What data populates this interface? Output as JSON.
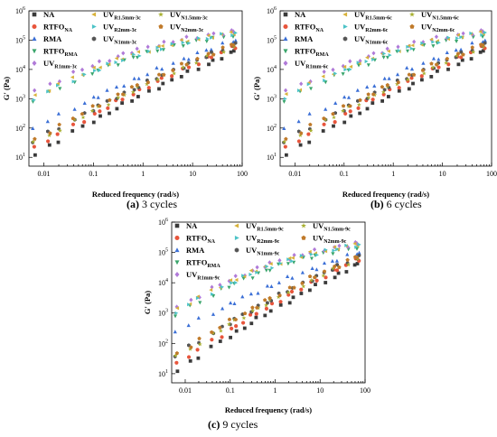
{
  "chart_data": [
    {
      "type": "scatter",
      "caption_label": "(a)",
      "caption_text": "3 cycles",
      "xlabel": "Reduced frequency (rad/s)",
      "ylabel": "G' (Pa)",
      "xscale": "log",
      "yscale": "log",
      "xlim": [
        0.005,
        100
      ],
      "ylim": [
        5,
        1000000
      ],
      "xticks": [
        "0.01",
        "0.1",
        "1",
        "10",
        "100"
      ],
      "yticks": [
        "10^1",
        "10^2",
        "10^3",
        "10^4",
        "10^5",
        "10^6"
      ],
      "grid": false,
      "legend": "top-left, 3 columns",
      "series": [
        {
          "name": "NA",
          "marker": "square",
          "color": "#3a3a3a",
          "y_at_0.006": 12,
          "y_at_70": 40000
        },
        {
          "name": "RTFO_NA",
          "marker": "circle",
          "color": "#e8553c",
          "y_at_0.006": 20,
          "y_at_70": 60000
        },
        {
          "name": "RMA",
          "marker": "triangle-up",
          "color": "#3b6fd6",
          "y_at_0.006": 100,
          "y_at_70": 100000
        },
        {
          "name": "RTFO_RMA",
          "marker": "triangle-down",
          "color": "#3aa56b",
          "y_at_0.006": 900,
          "y_at_70": 150000
        },
        {
          "name": "UV_R1mm-3c",
          "marker": "diamond",
          "color": "#b07ad8",
          "y_at_0.006": 1800,
          "y_at_70": 200000
        },
        {
          "name": "UV_R1.5mm-3c",
          "marker": "triangle-left",
          "color": "#d8b23a",
          "y_at_0.006": 1200,
          "y_at_70": 180000
        },
        {
          "name": "UV_R2mm-3c",
          "marker": "triangle-right",
          "color": "#4cc3c7",
          "y_at_0.006": 1000,
          "y_at_70": 170000
        },
        {
          "name": "UV_N1mm-3c",
          "marker": "hexagon",
          "color": "#555555",
          "y_at_0.006": 35,
          "y_at_70": 70000
        },
        {
          "name": "UV_N1.5mm-3c",
          "marker": "star",
          "color": "#a8b030",
          "y_at_0.006": 30,
          "y_at_70": 65000
        },
        {
          "name": "UV_N2mm-3c",
          "marker": "pentagon",
          "color": "#c07a2a",
          "y_at_0.006": 40,
          "y_at_70": 75000
        }
      ]
    },
    {
      "type": "scatter",
      "caption_label": "(b)",
      "caption_text": "6 cycles",
      "xlabel": "Reduced frequency (rad/s)",
      "ylabel": "G' (Pa)",
      "xscale": "log",
      "yscale": "log",
      "xlim": [
        0.005,
        100
      ],
      "ylim": [
        5,
        1000000
      ],
      "xticks": [
        "0.01",
        "0.1",
        "1",
        "10",
        "100"
      ],
      "yticks": [
        "10^1",
        "10^2",
        "10^3",
        "10^4",
        "10^5",
        "10^6"
      ],
      "grid": false,
      "legend": "top-left, 3 columns",
      "series": [
        {
          "name": "NA",
          "marker": "square",
          "color": "#3a3a3a",
          "y_at_0.006": 12,
          "y_at_70": 40000
        },
        {
          "name": "RTFO_NA",
          "marker": "circle",
          "color": "#e8553c",
          "y_at_0.006": 20,
          "y_at_70": 60000
        },
        {
          "name": "RMA",
          "marker": "triangle-up",
          "color": "#3b6fd6",
          "y_at_0.006": 100,
          "y_at_70": 100000
        },
        {
          "name": "RTFO_RMA",
          "marker": "triangle-down",
          "color": "#3aa56b",
          "y_at_0.006": 900,
          "y_at_70": 150000
        },
        {
          "name": "UV_R1mm-6c",
          "marker": "diamond",
          "color": "#b07ad8",
          "y_at_0.006": 1800,
          "y_at_70": 200000
        },
        {
          "name": "UV_R1.5mm-6c",
          "marker": "triangle-left",
          "color": "#d8b23a",
          "y_at_0.006": 1300,
          "y_at_70": 185000
        },
        {
          "name": "UV_R2mm-6c",
          "marker": "triangle-right",
          "color": "#4cc3c7",
          "y_at_0.006": 1100,
          "y_at_70": 175000
        },
        {
          "name": "UV_N1mm-6c",
          "marker": "hexagon",
          "color": "#555555",
          "y_at_0.006": 35,
          "y_at_70": 70000
        },
        {
          "name": "UV_N1.5mm-6c",
          "marker": "star",
          "color": "#a8b030",
          "y_at_0.006": 30,
          "y_at_70": 65000
        },
        {
          "name": "UV_N2mm-6c",
          "marker": "pentagon",
          "color": "#c07a2a",
          "y_at_0.006": 40,
          "y_at_70": 75000
        }
      ]
    },
    {
      "type": "scatter",
      "caption_label": "(c)",
      "caption_text": "9 cycles",
      "xlabel": "Reduced frequency (rad/s)",
      "ylabel": "G' (Pa)",
      "xscale": "log",
      "yscale": "log",
      "xlim": [
        0.005,
        100
      ],
      "ylim": [
        5,
        1000000
      ],
      "xticks": [
        "0.01",
        "0.1",
        "1",
        "10",
        "100"
      ],
      "yticks": [
        "10^1",
        "10^2",
        "10^3",
        "10^4",
        "10^5",
        "10^6"
      ],
      "grid": false,
      "legend": "top-left, 3 columns",
      "series": [
        {
          "name": "NA",
          "marker": "square",
          "color": "#3a3a3a",
          "y_at_0.006": 12,
          "y_at_70": 40000
        },
        {
          "name": "RTFO_NA",
          "marker": "circle",
          "color": "#e8553c",
          "y_at_0.006": 20,
          "y_at_70": 60000
        },
        {
          "name": "RMA",
          "marker": "triangle-up",
          "color": "#3b6fd6",
          "y_at_0.006": 250,
          "y_at_70": 100000
        },
        {
          "name": "RTFO_RMA",
          "marker": "triangle-down",
          "color": "#3aa56b",
          "y_at_0.006": 900,
          "y_at_70": 150000
        },
        {
          "name": "UV_R1mm-9c",
          "marker": "diamond",
          "color": "#b07ad8",
          "y_at_0.006": 1500,
          "y_at_70": 200000
        },
        {
          "name": "UV_R1.5mm-9c",
          "marker": "triangle-left",
          "color": "#d8b23a",
          "y_at_0.006": 1300,
          "y_at_70": 185000
        },
        {
          "name": "UV_R2mm-9c",
          "marker": "triangle-right",
          "color": "#4cc3c7",
          "y_at_0.006": 1100,
          "y_at_70": 175000
        },
        {
          "name": "UV_N1mm-9c",
          "marker": "hexagon",
          "color": "#555555",
          "y_at_0.006": 40,
          "y_at_70": 70000
        },
        {
          "name": "UV_N1.5mm-9c",
          "marker": "star",
          "color": "#a8b030",
          "y_at_0.006": 35,
          "y_at_70": 65000
        },
        {
          "name": "UV_N2mm-9c",
          "marker": "pentagon",
          "color": "#c07a2a",
          "y_at_0.006": 45,
          "y_at_70": 75000
        }
      ]
    }
  ]
}
